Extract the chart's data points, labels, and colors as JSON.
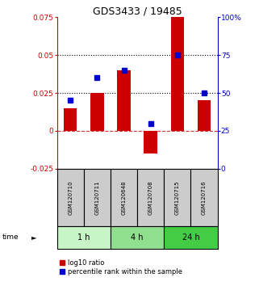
{
  "title": "GDS3433 / 19485",
  "samples": [
    "GSM120710",
    "GSM120711",
    "GSM120648",
    "GSM120708",
    "GSM120715",
    "GSM120716"
  ],
  "log10_ratio": [
    0.015,
    0.025,
    0.04,
    -0.015,
    0.075,
    0.02
  ],
  "percentile_rank": [
    45,
    60,
    65,
    30,
    75,
    50
  ],
  "left_ylim": [
    -0.025,
    0.075
  ],
  "right_ylim": [
    0,
    100
  ],
  "left_yticks": [
    -0.025,
    0,
    0.025,
    0.05,
    0.075
  ],
  "right_yticks": [
    0,
    25,
    50,
    75,
    100
  ],
  "hlines_dotted": [
    0.025,
    0.05
  ],
  "hline_dashed": 0,
  "time_groups": [
    {
      "label": "1 h",
      "start": 0,
      "end": 2,
      "color": "#c8f5c8"
    },
    {
      "label": "4 h",
      "start": 2,
      "end": 4,
      "color": "#90e090"
    },
    {
      "label": "24 h",
      "start": 4,
      "end": 6,
      "color": "#44cc44"
    }
  ],
  "bar_color": "#cc0000",
  "dot_color": "#0000cc",
  "bar_width": 0.5,
  "dot_size": 5,
  "bg_color": "#ffffff",
  "sample_box_color": "#cccccc",
  "legend_items": [
    "log10 ratio",
    "percentile rank within the sample"
  ],
  "left_tick_color": "#cc0000",
  "right_tick_color": "#0000cc",
  "figsize": [
    3.21,
    3.54
  ],
  "dpi": 100
}
